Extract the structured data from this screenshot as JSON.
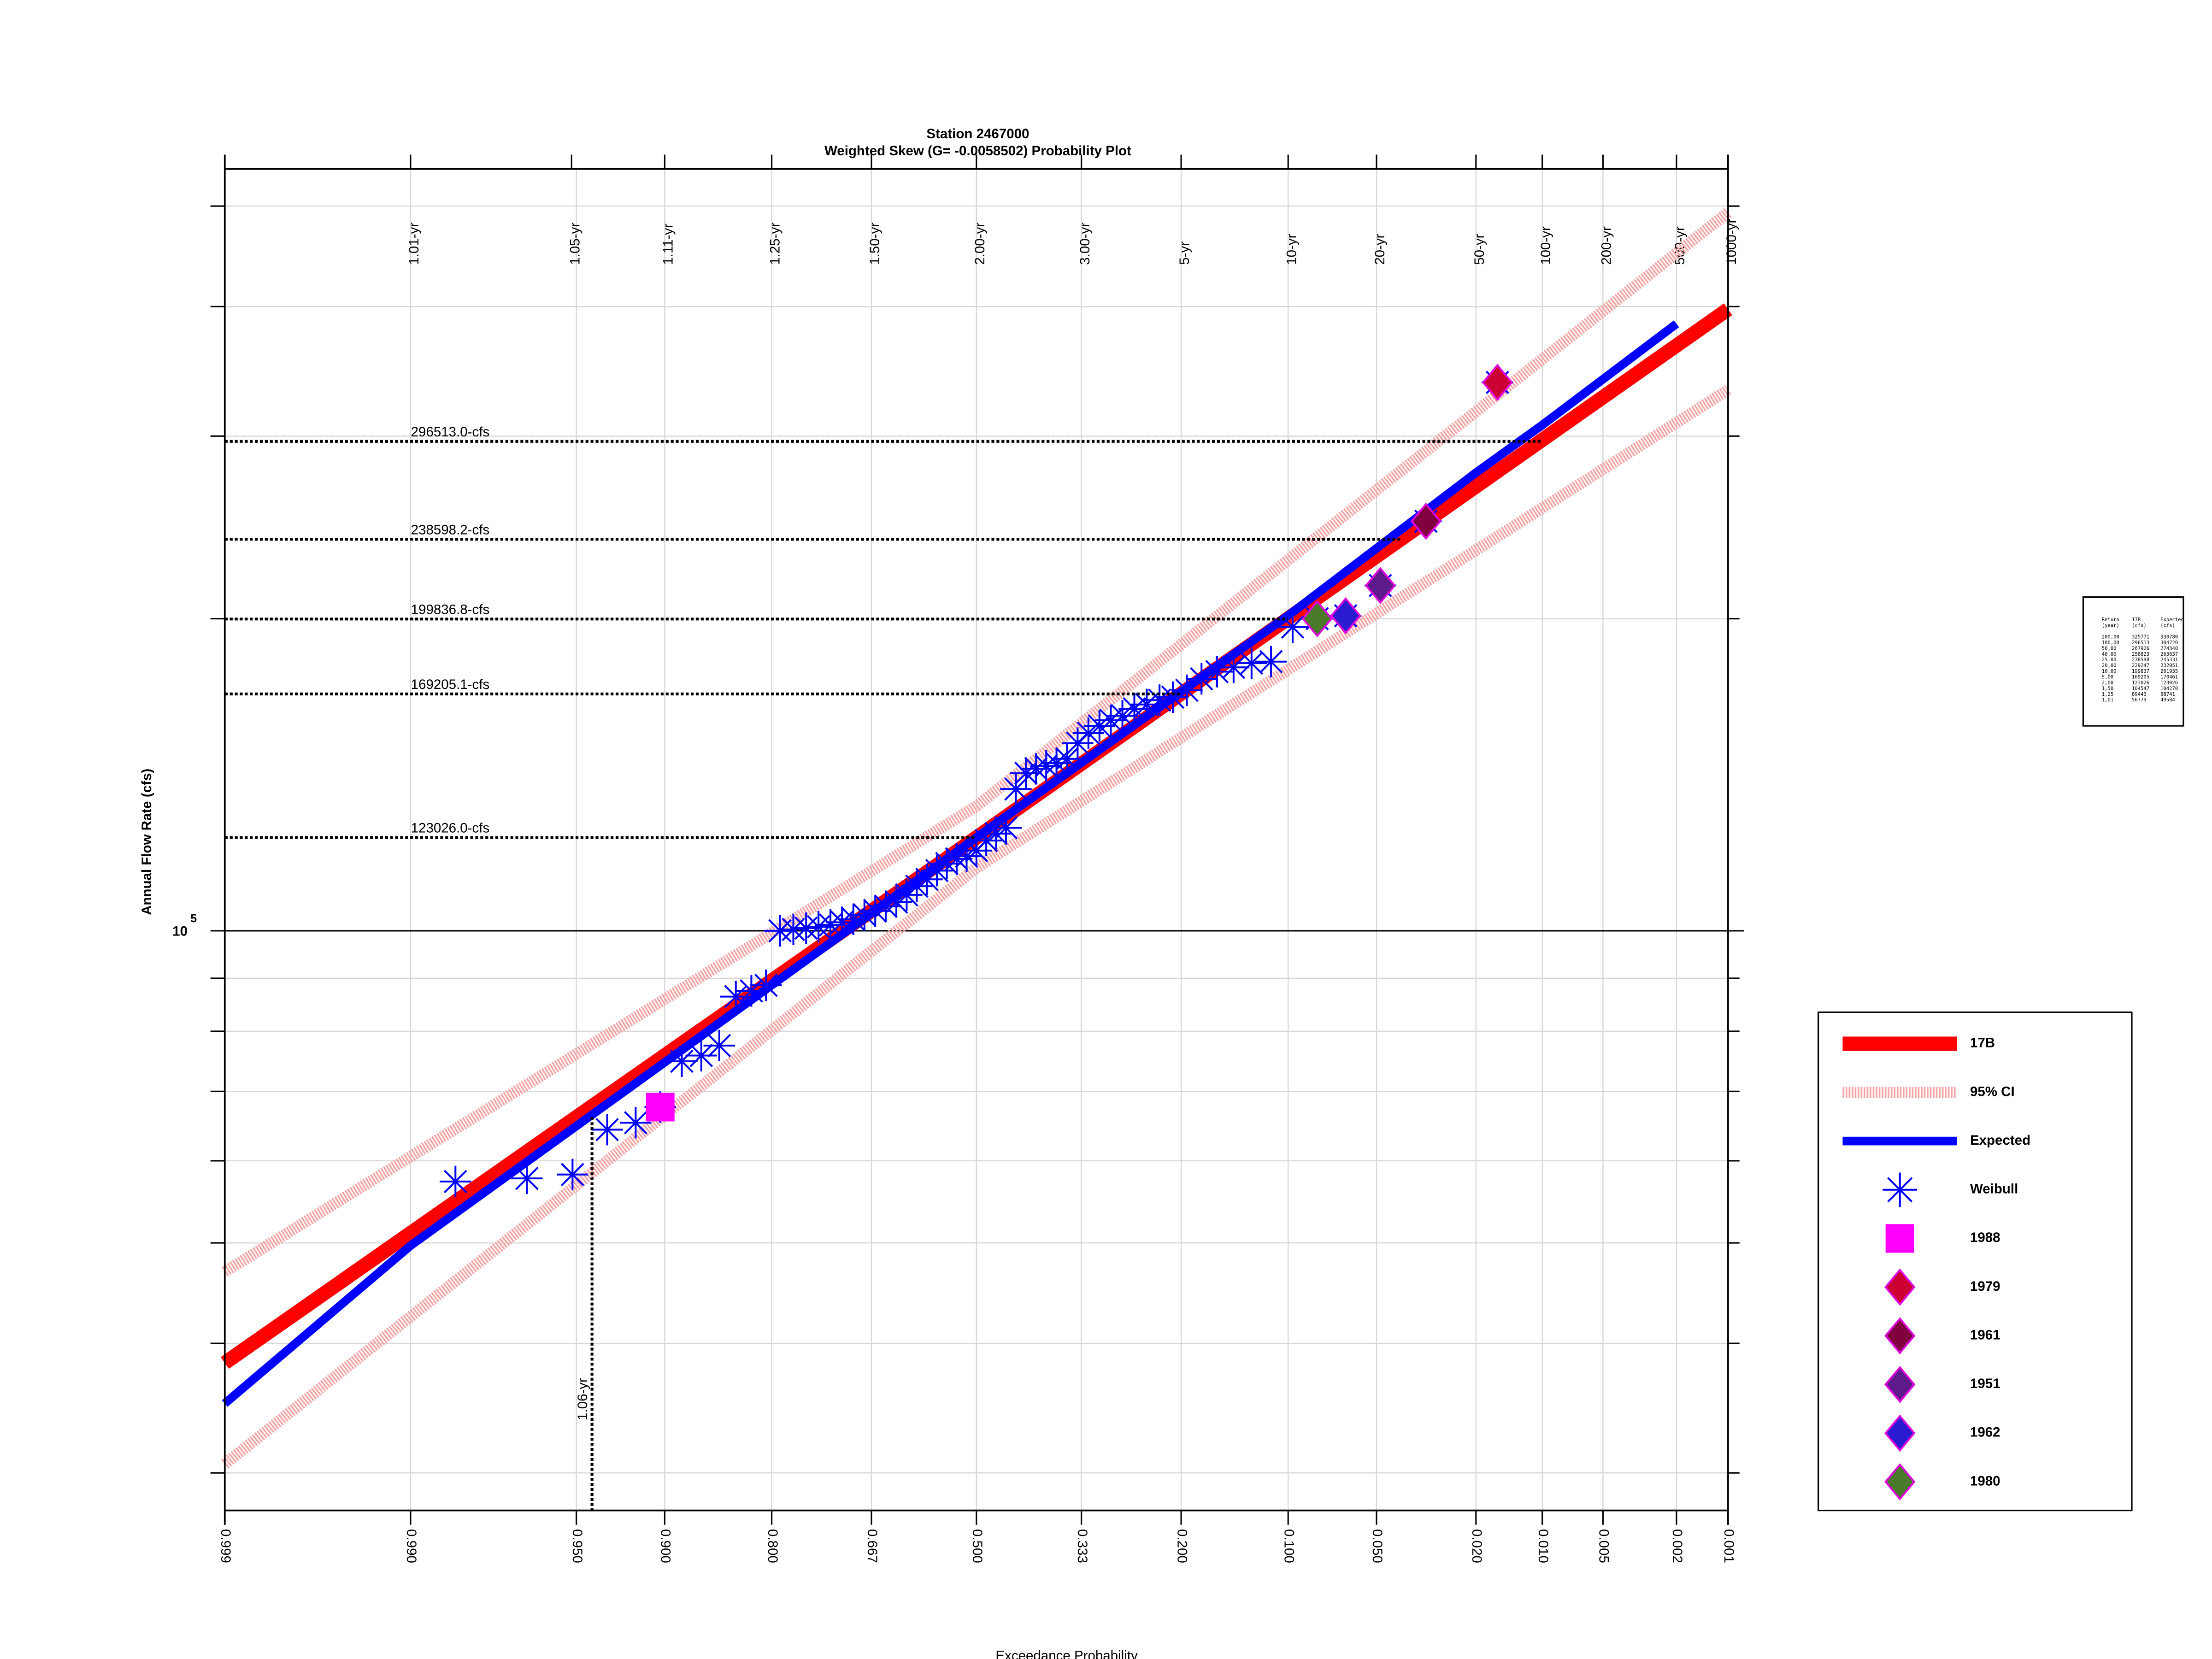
{
  "chart_data": {
    "type": "probability",
    "title": "Station 2467000",
    "subtitle": "Weighted Skew (G= -0.0058502) Probability Plot",
    "xlabel": "Exceedance Probability",
    "ylabel": "Annual Flow Rate (cfs)",
    "xscale": "normal-probability",
    "yscale": "log",
    "grid": true,
    "legend_position": "right",
    "xlim": [
      0.999,
      0.001
    ],
    "ylim": [
      27600,
      543000
    ],
    "xticks": [
      0.999,
      {
        "value": 0.99,
        "label": "0.990"
      },
      {
        "value": 0.95,
        "label": "0.950"
      },
      {
        "value": 0.9,
        "label": "0.900"
      },
      {
        "value": 0.8,
        "label": "0.800"
      },
      0.667,
      {
        "value": 0.5,
        "label": "0.500"
      },
      0.333,
      {
        "value": 0.2,
        "label": "0.200"
      },
      {
        "value": 0.1,
        "label": "0.100"
      },
      {
        "value": 0.05,
        "label": "0.050"
      },
      {
        "value": 0.02,
        "label": "0.020"
      },
      {
        "value": 0.01,
        "label": "0.010"
      },
      0.005,
      0.002,
      0.001
    ],
    "top_ticks": [
      {
        "value": 0.99,
        "label": "1.01-yr"
      },
      {
        "value": 0.952,
        "label": "1.05-yr"
      },
      {
        "value": 0.9,
        "label": "1.11-yr"
      },
      {
        "value": 0.8,
        "label": "1.25-yr"
      },
      {
        "value": 0.667,
        "label": "1.50-yr"
      },
      {
        "value": 0.5,
        "label": "2.00-yr"
      },
      {
        "value": 0.333,
        "label": "3.00-yr"
      },
      {
        "value": 0.2,
        "label": "5-yr"
      },
      {
        "value": 0.1,
        "label": "10-yr"
      },
      {
        "value": 0.05,
        "label": "20-yr"
      },
      {
        "value": 0.02,
        "label": "50-yr"
      },
      {
        "value": 0.01,
        "label": "100-yr"
      },
      {
        "value": 0.005,
        "label": "200-yr"
      },
      {
        "value": 0.002,
        "label": "500-yr"
      },
      {
        "value": 0.001,
        "label": "1000-yr"
      }
    ],
    "yticks": [
      {
        "value": 100000,
        "label": "10",
        "superscript": "5"
      }
    ],
    "yminor_ticks": [
      30000,
      40000,
      50000,
      60000,
      70000,
      80000,
      90000,
      200000,
      300000,
      400000,
      500000
    ],
    "series": [
      {
        "name": "17B",
        "color": "#ff0000",
        "style": "thick",
        "x": [
          0.999,
          0.5,
          0.001
        ],
        "values": [
          38300,
          123026,
          397600
        ]
      },
      {
        "name": "95% CI",
        "color": "#f4a6a6",
        "style": "band",
        "x": [
          0.999,
          0.5,
          0.001
        ],
        "upper": [
          46900,
          131900,
          493000
        ],
        "lower": [
          30600,
          115000,
          332500
        ]
      },
      {
        "name": "Expected",
        "color": "#0000ff",
        "style": "line",
        "x": [
          0.999,
          0.99,
          0.5,
          0.1,
          0.02,
          0.01,
          0.002
        ],
        "values": [
          35000,
          49700,
          123026,
          201400,
          276600,
          307500,
          385000
        ]
      },
      {
        "name": "Weibull",
        "color": "#0000ff",
        "marker": "star",
        "x": [
          0.0161,
          0.0323,
          0.0484,
          0.0645,
          0.0806,
          0.0968,
          0.1129,
          0.129,
          0.1452,
          0.1613,
          0.1774,
          0.1935,
          0.2097,
          0.2258,
          0.2419,
          0.2581,
          0.2742,
          0.2903,
          0.3065,
          0.3226,
          0.3387,
          0.3548,
          0.371,
          0.3871,
          0.4032,
          0.4194,
          0.4355,
          0.4516,
          0.4677,
          0.4839,
          0.5,
          0.5161,
          0.5323,
          0.5484,
          0.5645,
          0.5806,
          0.5968,
          0.6129,
          0.629,
          0.6452,
          0.6613,
          0.6774,
          0.6935,
          0.7097,
          0.7258,
          0.7419,
          0.7581,
          0.7742,
          0.7903,
          0.8065,
          0.8226,
          0.8387,
          0.8548,
          0.871,
          0.8871,
          0.9032,
          0.9194,
          0.9355,
          0.9516,
          0.9677,
          0.9839
        ],
        "values": [
          338000,
          248300,
          215300,
          201300,
          200000,
          196300,
          181800,
          181200,
          179500,
          177800,
          175000,
          170600,
          168000,
          166900,
          165300,
          163700,
          161200,
          159600,
          157600,
          155100,
          151700,
          146500,
          145100,
          144200,
          143300,
          141900,
          137000,
          125700,
          124100,
          122200,
          119500,
          118000,
          117300,
          116100,
          114300,
          112100,
          110400,
          108300,
          106600,
          105600,
          104500,
          103600,
          102600,
          101900,
          101300,
          100900,
          100600,
          100300,
          100000,
          88600,
          87500,
          86400,
          77500,
          75800,
          74850,
          67600,
          65300,
          64300,
          58200,
          57700,
          57300
        ]
      },
      {
        "name": "1988",
        "color": "#ff00ff",
        "marker": "square",
        "x": [
          0.9032
        ],
        "values": [
          67600
        ]
      },
      {
        "name": "1979",
        "color": "#cc0033",
        "edge": "#e000e0",
        "marker": "diamond",
        "x": [
          0.0161
        ],
        "values": [
          338000
        ]
      },
      {
        "name": "1961",
        "color": "#800040",
        "edge": "#e000e0",
        "marker": "diamond",
        "x": [
          0.0323
        ],
        "values": [
          248300
        ]
      },
      {
        "name": "1951",
        "color": "#5c1a8a",
        "edge": "#e000e0",
        "marker": "diamond",
        "x": [
          0.0484
        ],
        "values": [
          215300
        ]
      },
      {
        "name": "1962",
        "color": "#2a1ad0",
        "edge": "#e000e0",
        "marker": "diamond",
        "x": [
          0.0645
        ],
        "values": [
          201300
        ]
      },
      {
        "name": "1980",
        "color": "#4a7a2a",
        "edge": "#e000e0",
        "marker": "diamond",
        "x": [
          0.0806
        ],
        "values": [
          200000
        ]
      }
    ],
    "annotations": [
      {
        "label": "296513.0-cfs",
        "value": 296513.0,
        "x": 0.01
      },
      {
        "label": "238598.2-cfs",
        "value": 238598.2,
        "x": 0.04
      },
      {
        "label": "199836.8-cfs",
        "value": 199836.8,
        "x": 0.1
      },
      {
        "label": "169205.1-cfs",
        "value": 169205.1,
        "x": 0.2
      },
      {
        "label": "123026.0-cfs",
        "value": 123026.0,
        "x": 0.5
      }
    ],
    "vertical_annotation": {
      "label": "1.06-yr",
      "x": 0.943,
      "value": 66100
    },
    "return_table": {
      "header": [
        [
          "Return",
          "17B",
          "Expected"
        ],
        [
          "(year)",
          "(cfs)",
          "(cfs)"
        ]
      ],
      "rows": [
        [
          "200,00",
          "325771",
          "330780"
        ],
        [
          "100,00",
          "296513",
          "304720"
        ],
        [
          "50,00",
          "267926",
          "274340"
        ],
        [
          "40,00",
          "258823",
          "263637"
        ],
        [
          "25,00",
          "238598",
          "245331"
        ],
        [
          "20,00",
          "229247",
          "232951"
        ],
        [
          "10,00",
          "199837",
          "201935"
        ],
        [
          "5,00",
          "169205",
          "170461"
        ],
        [
          "2,00",
          "123026",
          "123026"
        ],
        [
          "1,50",
          "104547",
          "104270"
        ],
        [
          "1,25",
          "89443",
          "88741"
        ],
        [
          "1,01",
          "56779",
          "49584"
        ]
      ]
    }
  }
}
